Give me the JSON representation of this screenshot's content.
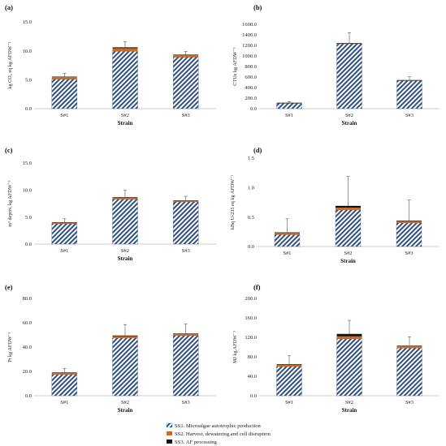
{
  "legend": [
    {
      "key": "SS1",
      "label": "SS1. Microalgae autotrophic production",
      "color": "#2f4f7f"
    },
    {
      "key": "SS2",
      "label": "SS2. Harvest, dewatering and cell disruption",
      "color": "#d2691e"
    },
    {
      "key": "SS3",
      "label": "SS3. AF processing",
      "color": "#111111"
    }
  ],
  "chart_data": [
    {
      "panel": "(a)",
      "type": "bar",
      "stacked": true,
      "categories": [
        "S#1",
        "S#2",
        "S#3"
      ],
      "xlabel": "Strain",
      "ylabel": "kg CO₂ eq kg AFDW⁻¹",
      "ylim": [
        0,
        15
      ],
      "yticks": [
        0,
        5,
        10,
        15
      ],
      "ytick_labels": [
        "0.0",
        "5.0",
        "10.0",
        "15.0"
      ],
      "series": [
        {
          "name": "SS1. Microalgae autotrophic production",
          "values": [
            5.1,
            9.9,
            8.9
          ]
        },
        {
          "name": "SS2. Harvest, dewatering and cell disruption",
          "values": [
            0.35,
            0.55,
            0.35
          ]
        },
        {
          "name": "SS3. AF processing",
          "values": [
            0.05,
            0.15,
            0.05
          ]
        }
      ],
      "errors": [
        0.6,
        1.0,
        0.6
      ]
    },
    {
      "panel": "(b)",
      "type": "bar",
      "stacked": true,
      "categories": [
        "S#1",
        "S#2",
        "S#3"
      ],
      "xlabel": "Strain",
      "ylabel": "CTUe kg AFDW⁻¹",
      "ylim": [
        0,
        1600
      ],
      "yticks": [
        0,
        200,
        400,
        600,
        800,
        1000,
        1200,
        1400,
        1600
      ],
      "ytick_labels": [
        "0.0",
        "200.0",
        "400.0",
        "600.0",
        "800.0",
        "1000.0",
        "1200.0",
        "1400.0",
        "1600.0"
      ],
      "series": [
        {
          "name": "SS1. Microalgae autotrophic production",
          "values": [
            100,
            1230,
            530
          ]
        },
        {
          "name": "SS2. Harvest, dewatering and cell disruption",
          "values": [
            3,
            5,
            3
          ]
        },
        {
          "name": "SS3. AF processing",
          "values": [
            1,
            5,
            1
          ]
        }
      ],
      "errors": [
        30,
        200,
        70
      ]
    },
    {
      "panel": "(c)",
      "type": "bar",
      "stacked": true,
      "categories": [
        "S#1",
        "S#2",
        "S#3"
      ],
      "xlabel": "Strain",
      "ylabel": "m³ depriv. kg AFDW⁻¹",
      "ylim": [
        0,
        15
      ],
      "yticks": [
        0,
        5,
        10,
        15
      ],
      "ytick_labels": [
        "0.0",
        "5.0",
        "10.0",
        "15.0"
      ],
      "series": [
        {
          "name": "SS1. Microalgae autotrophic production",
          "values": [
            3.75,
            8.3,
            7.8
          ]
        },
        {
          "name": "SS2. Harvest, dewatering and cell disruption",
          "values": [
            0.2,
            0.3,
            0.2
          ]
        },
        {
          "name": "SS3. AF processing",
          "values": [
            0.03,
            0.05,
            0.03
          ]
        }
      ],
      "errors": [
        0.7,
        1.3,
        0.8
      ]
    },
    {
      "panel": "(d)",
      "type": "bar",
      "stacked": true,
      "categories": [
        "S#1",
        "S#2",
        "S#3"
      ],
      "xlabel": "Strain",
      "ylabel": "kBq U-235 eq kg AFDW⁻¹",
      "ylim": [
        0,
        1.5
      ],
      "yticks": [
        0,
        0.5,
        1.0,
        1.5
      ],
      "ytick_labels": [
        "0.0",
        "0.5",
        "1.0",
        "1.5"
      ],
      "series": [
        {
          "name": "SS1. Microalgae autotrophic production",
          "values": [
            0.2,
            0.62,
            0.4
          ]
        },
        {
          "name": "SS2. Harvest, dewatering and cell disruption",
          "values": [
            0.03,
            0.04,
            0.03
          ]
        },
        {
          "name": "SS3. AF processing",
          "values": [
            0.01,
            0.03,
            0.01
          ]
        }
      ],
      "errors": [
        0.23,
        0.5,
        0.35
      ]
    },
    {
      "panel": "(e)",
      "type": "bar",
      "stacked": true,
      "categories": [
        "S#1",
        "S#2",
        "S#3"
      ],
      "xlabel": "Strain",
      "ylabel": "Pt kg AFDW⁻¹",
      "ylim": [
        0,
        80
      ],
      "yticks": [
        0,
        20,
        40,
        60,
        80
      ],
      "ytick_labels": [
        "0.0",
        "20.0",
        "40.0",
        "60.0",
        "80.0"
      ],
      "series": [
        {
          "name": "SS1. Microalgae autotrophic production",
          "values": [
            17.5,
            47.5,
            49.5
          ]
        },
        {
          "name": "SS2. Harvest, dewatering and cell disruption",
          "values": [
            1.3,
            1.5,
            1.3
          ]
        },
        {
          "name": "SS3. AF processing",
          "values": [
            0.2,
            0.5,
            0.2
          ]
        }
      ],
      "errors": [
        3.5,
        9,
        8
      ]
    },
    {
      "panel": "(f)",
      "type": "bar",
      "stacked": true,
      "categories": [
        "S#1",
        "S#2",
        "S#3"
      ],
      "xlabel": "Strain",
      "ylabel": "MJ kg AFDW⁻¹",
      "ylim": [
        0,
        200
      ],
      "yticks": [
        0,
        40,
        80,
        120,
        160,
        200
      ],
      "ytick_labels": [
        "0.0",
        "40.0",
        "80.0",
        "120.0",
        "160.0",
        "200.0"
      ],
      "series": [
        {
          "name": "SS1. Microalgae autotrophic production",
          "values": [
            60,
            117,
            98
          ]
        },
        {
          "name": "SS2. Harvest, dewatering and cell disruption",
          "values": [
            4,
            5,
            4
          ]
        },
        {
          "name": "SS3. AF processing",
          "values": [
            1,
            5,
            1
          ]
        }
      ],
      "errors": [
        17,
        28,
        18
      ]
    }
  ]
}
